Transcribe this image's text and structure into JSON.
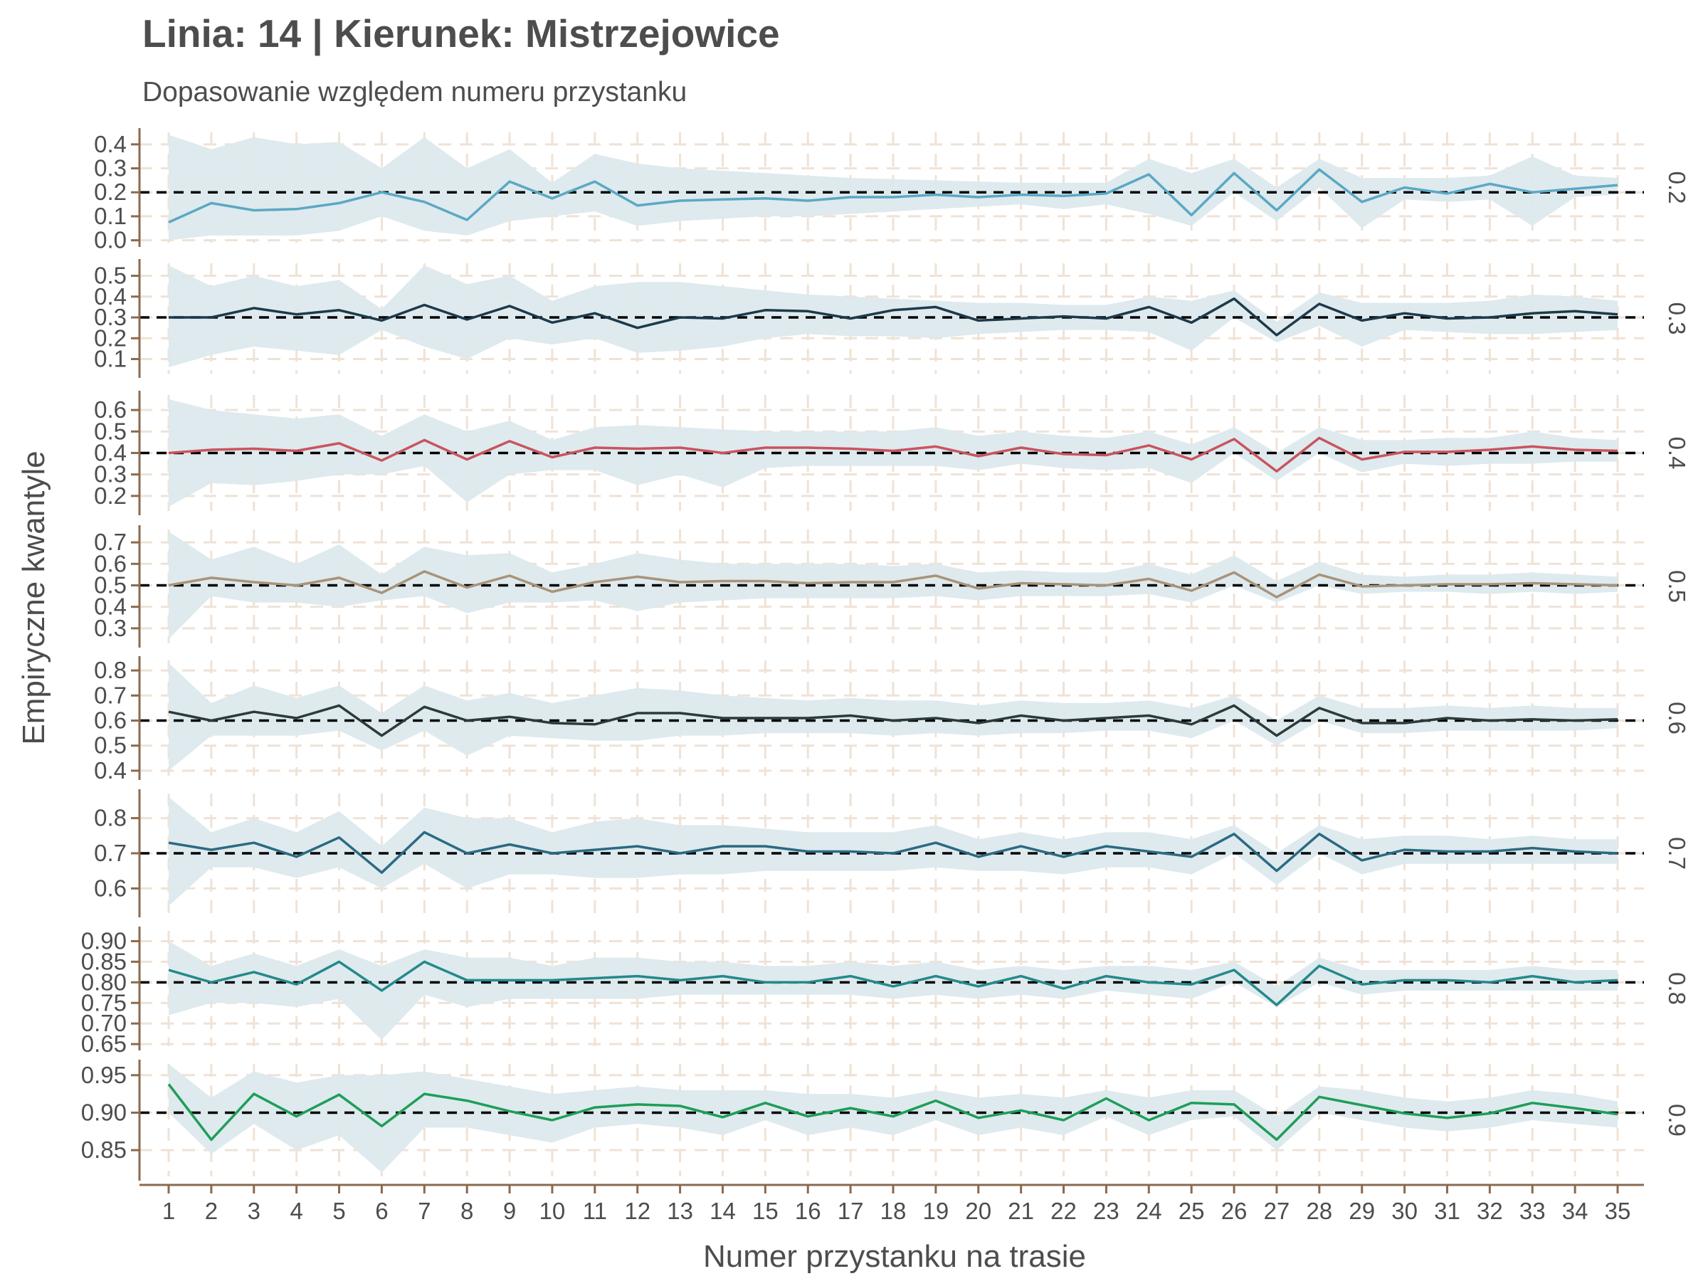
{
  "title": "Linia: 14 | Kierunek: Mistrzejowice",
  "subtitle": "Dopasowanie względem numeru przystanku",
  "xlabel": "Numer przystanku na trasie",
  "ylabel": "Empiryczne kwantyle",
  "colors": {
    "grid": "#efe2d6",
    "axis": "#8b6a4e",
    "band": "#dce9ed",
    "reference": "#000000"
  },
  "chart_data": {
    "type": "line",
    "x": [
      1,
      2,
      3,
      4,
      5,
      6,
      7,
      8,
      9,
      10,
      11,
      12,
      13,
      14,
      15,
      16,
      17,
      18,
      19,
      20,
      21,
      22,
      23,
      24,
      25,
      26,
      27,
      28,
      29,
      30,
      31,
      32,
      33,
      34,
      35
    ],
    "facets": [
      {
        "label": "0.2",
        "reference": 0.2,
        "color": "#5ba8c4",
        "ylim": [
          -0.01,
          0.45
        ],
        "yticks": [
          "0.0",
          "0.1",
          "0.2",
          "0.3",
          "0.4"
        ],
        "values": [
          0.075,
          0.155,
          0.125,
          0.13,
          0.155,
          0.2,
          0.16,
          0.085,
          0.245,
          0.175,
          0.245,
          0.145,
          0.165,
          0.17,
          0.175,
          0.165,
          0.18,
          0.18,
          0.19,
          0.18,
          0.19,
          0.185,
          0.195,
          0.275,
          0.105,
          0.28,
          0.125,
          0.295,
          0.16,
          0.22,
          0.195,
          0.235,
          0.2,
          0.215,
          0.23
        ],
        "band_upper": [
          0.44,
          0.38,
          0.43,
          0.4,
          0.41,
          0.3,
          0.43,
          0.3,
          0.38,
          0.24,
          0.36,
          0.32,
          0.3,
          0.29,
          0.28,
          0.27,
          0.26,
          0.255,
          0.25,
          0.245,
          0.24,
          0.24,
          0.24,
          0.34,
          0.28,
          0.34,
          0.22,
          0.34,
          0.26,
          0.26,
          0.26,
          0.27,
          0.35,
          0.27,
          0.26
        ],
        "band_lower": [
          0.0,
          0.02,
          0.02,
          0.02,
          0.04,
          0.1,
          0.04,
          0.02,
          0.08,
          0.1,
          0.12,
          0.06,
          0.08,
          0.09,
          0.1,
          0.1,
          0.11,
          0.12,
          0.13,
          0.14,
          0.15,
          0.13,
          0.15,
          0.11,
          0.06,
          0.2,
          0.08,
          0.22,
          0.05,
          0.17,
          0.16,
          0.17,
          0.06,
          0.18,
          0.19
        ]
      },
      {
        "label": "0.3",
        "reference": 0.3,
        "color": "#1d3a4a",
        "ylim": [
          0.03,
          0.56
        ],
        "yticks": [
          "0.1",
          "0.2",
          "0.3",
          "0.4",
          "0.5"
        ],
        "values": [
          0.3,
          0.3,
          0.345,
          0.315,
          0.335,
          0.285,
          0.36,
          0.29,
          0.355,
          0.275,
          0.32,
          0.25,
          0.3,
          0.295,
          0.335,
          0.33,
          0.295,
          0.335,
          0.35,
          0.285,
          0.295,
          0.305,
          0.295,
          0.35,
          0.275,
          0.39,
          0.215,
          0.365,
          0.285,
          0.32,
          0.295,
          0.3,
          0.32,
          0.33,
          0.315
        ],
        "band_upper": [
          0.55,
          0.45,
          0.5,
          0.45,
          0.48,
          0.34,
          0.55,
          0.46,
          0.5,
          0.38,
          0.45,
          0.47,
          0.47,
          0.45,
          0.43,
          0.41,
          0.4,
          0.39,
          0.38,
          0.37,
          0.37,
          0.36,
          0.36,
          0.4,
          0.38,
          0.43,
          0.28,
          0.42,
          0.37,
          0.37,
          0.37,
          0.38,
          0.41,
          0.4,
          0.38
        ],
        "band_lower": [
          0.06,
          0.12,
          0.16,
          0.14,
          0.12,
          0.24,
          0.16,
          0.1,
          0.2,
          0.17,
          0.2,
          0.13,
          0.14,
          0.16,
          0.2,
          0.22,
          0.21,
          0.21,
          0.2,
          0.22,
          0.23,
          0.24,
          0.24,
          0.23,
          0.14,
          0.3,
          0.18,
          0.26,
          0.16,
          0.24,
          0.23,
          0.22,
          0.22,
          0.23,
          0.24
        ]
      },
      {
        "label": "0.4",
        "reference": 0.4,
        "color": "#c9545f",
        "ylim": [
          0.13,
          0.67
        ],
        "yticks": [
          "0.2",
          "0.3",
          "0.4",
          "0.5",
          "0.6"
        ],
        "values": [
          0.4,
          0.415,
          0.42,
          0.41,
          0.445,
          0.365,
          0.46,
          0.37,
          0.455,
          0.38,
          0.425,
          0.42,
          0.425,
          0.4,
          0.425,
          0.425,
          0.42,
          0.41,
          0.43,
          0.385,
          0.425,
          0.395,
          0.39,
          0.435,
          0.37,
          0.465,
          0.315,
          0.47,
          0.37,
          0.405,
          0.405,
          0.415,
          0.43,
          0.415,
          0.41
        ],
        "band_upper": [
          0.65,
          0.6,
          0.58,
          0.56,
          0.58,
          0.48,
          0.58,
          0.5,
          0.55,
          0.46,
          0.52,
          0.53,
          0.52,
          0.51,
          0.5,
          0.5,
          0.5,
          0.5,
          0.52,
          0.48,
          0.5,
          0.48,
          0.47,
          0.5,
          0.44,
          0.52,
          0.4,
          0.52,
          0.46,
          0.46,
          0.47,
          0.47,
          0.5,
          0.47,
          0.46
        ],
        "band_lower": [
          0.15,
          0.26,
          0.25,
          0.27,
          0.3,
          0.3,
          0.34,
          0.17,
          0.3,
          0.32,
          0.32,
          0.25,
          0.3,
          0.24,
          0.33,
          0.34,
          0.34,
          0.34,
          0.34,
          0.32,
          0.35,
          0.33,
          0.32,
          0.33,
          0.26,
          0.4,
          0.27,
          0.4,
          0.31,
          0.35,
          0.34,
          0.35,
          0.35,
          0.36,
          0.36
        ]
      },
      {
        "label": "0.5",
        "reference": 0.5,
        "color": "#a8937a",
        "ylim": [
          0.23,
          0.76
        ],
        "yticks": [
          "0.3",
          "0.4",
          "0.5",
          "0.6",
          "0.7"
        ],
        "values": [
          0.5,
          0.535,
          0.515,
          0.5,
          0.535,
          0.465,
          0.565,
          0.49,
          0.545,
          0.47,
          0.515,
          0.54,
          0.515,
          0.52,
          0.52,
          0.51,
          0.515,
          0.515,
          0.545,
          0.485,
          0.51,
          0.505,
          0.5,
          0.53,
          0.475,
          0.56,
          0.445,
          0.55,
          0.495,
          0.5,
          0.505,
          0.505,
          0.51,
          0.505,
          0.5
        ],
        "band_upper": [
          0.75,
          0.62,
          0.68,
          0.6,
          0.69,
          0.55,
          0.68,
          0.64,
          0.65,
          0.56,
          0.6,
          0.65,
          0.62,
          0.6,
          0.6,
          0.6,
          0.6,
          0.59,
          0.6,
          0.56,
          0.57,
          0.56,
          0.56,
          0.6,
          0.55,
          0.64,
          0.52,
          0.61,
          0.55,
          0.54,
          0.55,
          0.55,
          0.56,
          0.55,
          0.54
        ],
        "band_lower": [
          0.25,
          0.45,
          0.42,
          0.42,
          0.4,
          0.43,
          0.45,
          0.37,
          0.42,
          0.42,
          0.43,
          0.38,
          0.42,
          0.43,
          0.44,
          0.44,
          0.44,
          0.44,
          0.45,
          0.43,
          0.45,
          0.45,
          0.45,
          0.46,
          0.42,
          0.5,
          0.42,
          0.5,
          0.46,
          0.47,
          0.47,
          0.46,
          0.47,
          0.46,
          0.47
        ]
      },
      {
        "label": "0.6",
        "reference": 0.6,
        "color": "#2b3a3a",
        "ylim": [
          0.38,
          0.84
        ],
        "yticks": [
          "0.4",
          "0.5",
          "0.6",
          "0.7",
          "0.8"
        ],
        "values": [
          0.635,
          0.6,
          0.635,
          0.61,
          0.66,
          0.54,
          0.655,
          0.6,
          0.615,
          0.59,
          0.585,
          0.63,
          0.63,
          0.61,
          0.61,
          0.61,
          0.62,
          0.6,
          0.61,
          0.59,
          0.62,
          0.6,
          0.61,
          0.62,
          0.585,
          0.66,
          0.54,
          0.65,
          0.59,
          0.59,
          0.61,
          0.6,
          0.605,
          0.6,
          0.605
        ],
        "band_upper": [
          0.83,
          0.67,
          0.74,
          0.69,
          0.74,
          0.63,
          0.74,
          0.68,
          0.71,
          0.67,
          0.7,
          0.73,
          0.72,
          0.7,
          0.69,
          0.68,
          0.69,
          0.68,
          0.68,
          0.66,
          0.68,
          0.67,
          0.67,
          0.68,
          0.65,
          0.7,
          0.6,
          0.7,
          0.65,
          0.65,
          0.66,
          0.65,
          0.66,
          0.65,
          0.65
        ],
        "band_lower": [
          0.4,
          0.54,
          0.54,
          0.54,
          0.56,
          0.48,
          0.56,
          0.46,
          0.54,
          0.53,
          0.52,
          0.52,
          0.54,
          0.54,
          0.55,
          0.55,
          0.55,
          0.54,
          0.55,
          0.54,
          0.55,
          0.55,
          0.56,
          0.56,
          0.53,
          0.6,
          0.5,
          0.6,
          0.55,
          0.55,
          0.56,
          0.56,
          0.56,
          0.56,
          0.57
        ]
      },
      {
        "label": "0.7",
        "reference": 0.7,
        "color": "#2b6a82",
        "ylim": [
          0.53,
          0.87
        ],
        "yticks": [
          "0.6",
          "0.7",
          "0.8"
        ],
        "values": [
          0.73,
          0.71,
          0.73,
          0.69,
          0.745,
          0.645,
          0.76,
          0.7,
          0.725,
          0.7,
          0.71,
          0.72,
          0.7,
          0.72,
          0.72,
          0.705,
          0.705,
          0.7,
          0.73,
          0.69,
          0.72,
          0.69,
          0.72,
          0.705,
          0.69,
          0.755,
          0.65,
          0.755,
          0.68,
          0.71,
          0.705,
          0.705,
          0.715,
          0.705,
          0.7
        ],
        "band_upper": [
          0.86,
          0.76,
          0.8,
          0.76,
          0.82,
          0.72,
          0.83,
          0.8,
          0.8,
          0.76,
          0.79,
          0.8,
          0.78,
          0.78,
          0.77,
          0.76,
          0.76,
          0.76,
          0.78,
          0.74,
          0.76,
          0.74,
          0.76,
          0.76,
          0.74,
          0.78,
          0.7,
          0.78,
          0.74,
          0.75,
          0.75,
          0.74,
          0.75,
          0.74,
          0.74
        ],
        "band_lower": [
          0.55,
          0.66,
          0.66,
          0.63,
          0.66,
          0.6,
          0.67,
          0.6,
          0.64,
          0.64,
          0.63,
          0.63,
          0.64,
          0.64,
          0.65,
          0.65,
          0.65,
          0.65,
          0.66,
          0.65,
          0.65,
          0.64,
          0.66,
          0.66,
          0.64,
          0.7,
          0.61,
          0.7,
          0.64,
          0.67,
          0.67,
          0.67,
          0.67,
          0.67,
          0.67
        ]
      },
      {
        "label": "0.8",
        "reference": 0.8,
        "color": "#24898a",
        "ylim": [
          0.645,
          0.925
        ],
        "yticks": [
          "0.65",
          "0.70",
          "0.75",
          "0.80",
          "0.85",
          "0.90"
        ],
        "values": [
          0.83,
          0.8,
          0.825,
          0.795,
          0.85,
          0.78,
          0.85,
          0.805,
          0.805,
          0.805,
          0.81,
          0.815,
          0.805,
          0.815,
          0.8,
          0.8,
          0.815,
          0.79,
          0.815,
          0.79,
          0.815,
          0.785,
          0.815,
          0.8,
          0.795,
          0.83,
          0.745,
          0.84,
          0.795,
          0.805,
          0.805,
          0.8,
          0.815,
          0.8,
          0.805
        ],
        "band_upper": [
          0.9,
          0.84,
          0.87,
          0.84,
          0.88,
          0.84,
          0.88,
          0.86,
          0.86,
          0.84,
          0.86,
          0.86,
          0.85,
          0.85,
          0.84,
          0.84,
          0.85,
          0.84,
          0.85,
          0.83,
          0.84,
          0.83,
          0.84,
          0.84,
          0.83,
          0.85,
          0.79,
          0.86,
          0.83,
          0.83,
          0.83,
          0.83,
          0.84,
          0.83,
          0.83
        ],
        "band_lower": [
          0.72,
          0.75,
          0.75,
          0.74,
          0.76,
          0.66,
          0.77,
          0.74,
          0.76,
          0.76,
          0.76,
          0.76,
          0.77,
          0.77,
          0.77,
          0.77,
          0.77,
          0.76,
          0.77,
          0.76,
          0.77,
          0.76,
          0.78,
          0.77,
          0.76,
          0.8,
          0.74,
          0.8,
          0.77,
          0.78,
          0.78,
          0.78,
          0.78,
          0.78,
          0.78
        ]
      },
      {
        "label": "0.9",
        "reference": 0.9,
        "color": "#1e9e58",
        "ylim": [
          0.815,
          0.965
        ],
        "yticks": [
          "0.85",
          "0.90",
          "0.95"
        ],
        "values": [
          0.938,
          0.864,
          0.925,
          0.895,
          0.924,
          0.882,
          0.925,
          0.916,
          0.902,
          0.89,
          0.907,
          0.911,
          0.909,
          0.894,
          0.913,
          0.895,
          0.906,
          0.895,
          0.916,
          0.893,
          0.903,
          0.89,
          0.919,
          0.89,
          0.913,
          0.911,
          0.864,
          0.921,
          0.91,
          0.899,
          0.893,
          0.899,
          0.913,
          0.906,
          0.898
        ],
        "band_upper": [
          0.965,
          0.92,
          0.955,
          0.94,
          0.95,
          0.95,
          0.955,
          0.945,
          0.935,
          0.925,
          0.93,
          0.935,
          0.93,
          0.93,
          0.93,
          0.925,
          0.925,
          0.92,
          0.93,
          0.92,
          0.925,
          0.92,
          0.93,
          0.92,
          0.93,
          0.93,
          0.895,
          0.935,
          0.93,
          0.92,
          0.915,
          0.92,
          0.93,
          0.925,
          0.915
        ],
        "band_lower": [
          0.9,
          0.845,
          0.885,
          0.85,
          0.87,
          0.82,
          0.88,
          0.88,
          0.87,
          0.86,
          0.88,
          0.885,
          0.88,
          0.87,
          0.89,
          0.87,
          0.88,
          0.87,
          0.89,
          0.87,
          0.88,
          0.87,
          0.895,
          0.87,
          0.89,
          0.895,
          0.85,
          0.9,
          0.89,
          0.88,
          0.875,
          0.88,
          0.89,
          0.885,
          0.88
        ]
      }
    ]
  }
}
